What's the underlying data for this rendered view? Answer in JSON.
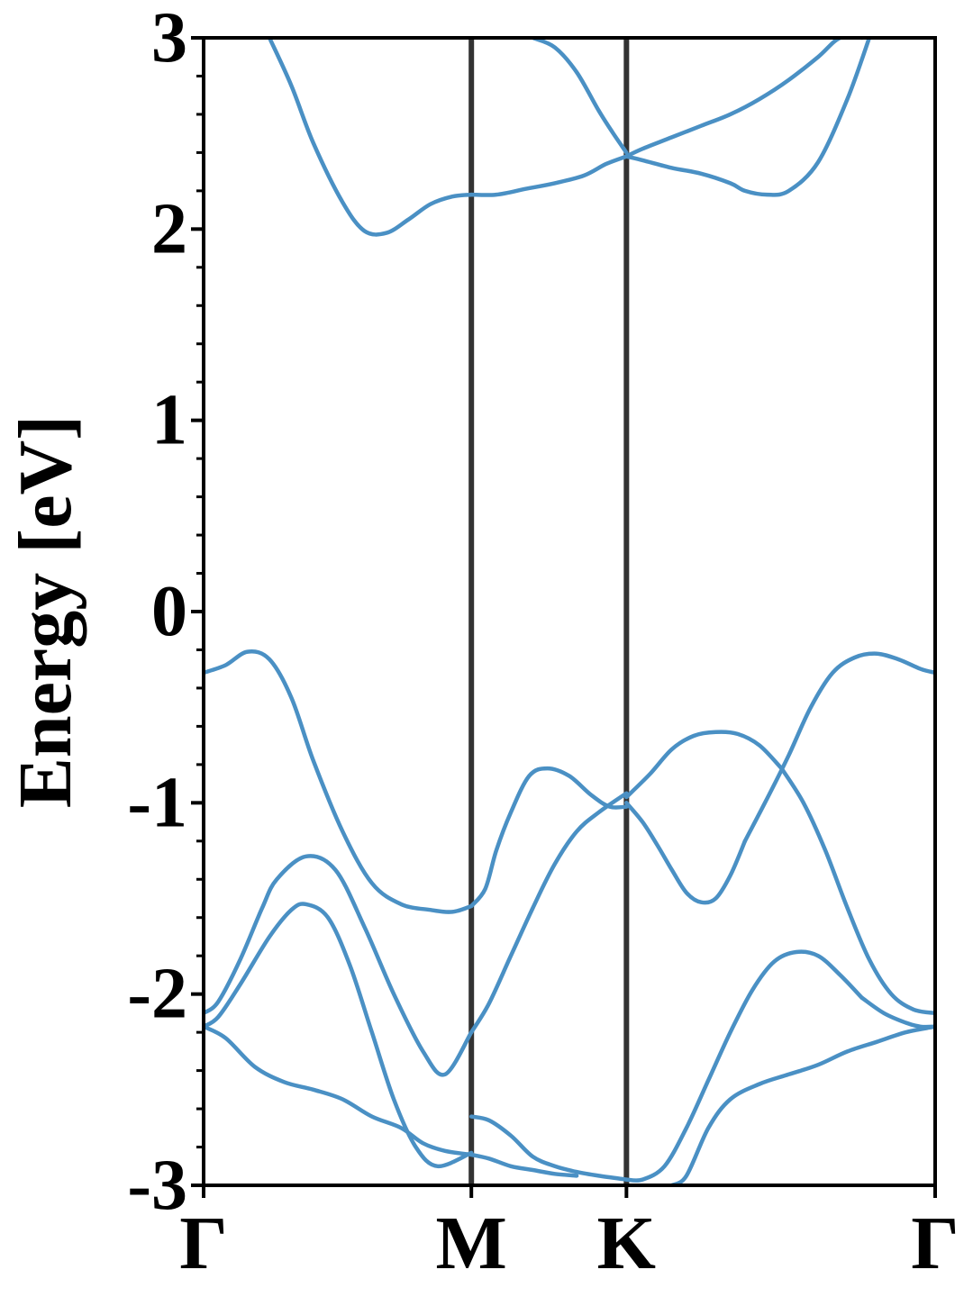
{
  "chart_data": {
    "type": "line",
    "title": "",
    "xlabel": "",
    "ylabel": "Energy [eV]",
    "ylim": [
      -3,
      3
    ],
    "xlim": [
      0,
      1
    ],
    "yticks": [
      "-3",
      "-2",
      "-1",
      "0",
      "1",
      "2",
      "3"
    ],
    "ytick_values": [
      -3,
      -2,
      -1,
      0,
      1,
      2,
      3
    ],
    "y_minor_step": 0.2,
    "xticks": [
      {
        "label": "Γ",
        "value": 0.0
      },
      {
        "label": "M",
        "value": 0.366
      },
      {
        "label": "K",
        "value": 0.578
      },
      {
        "label": "Γ",
        "value": 1.0
      }
    ],
    "grid": false,
    "legend": "none",
    "colors": {
      "band": "#4a90c4",
      "kline": "#333333",
      "axis": "#000000"
    },
    "series": [
      {
        "x": [
          0.0,
          0.02,
          0.05,
          0.08,
          0.1,
          0.14,
          0.18,
          0.22,
          0.26,
          0.3,
          0.33,
          0.366
        ],
        "y": [
          -2.1,
          -2.04,
          -1.82,
          -1.55,
          -1.4,
          -1.28,
          -1.35,
          -1.65,
          -2.0,
          -2.3,
          -2.42,
          -2.2
        ]
      },
      {
        "x": [
          0.0,
          0.02,
          0.05,
          0.09,
          0.12,
          0.14,
          0.17,
          0.2,
          0.23,
          0.26,
          0.29,
          0.32,
          0.366
        ],
        "y": [
          -2.17,
          -2.12,
          -1.95,
          -1.7,
          -1.56,
          -1.53,
          -1.6,
          -1.85,
          -2.2,
          -2.55,
          -2.8,
          -2.9,
          -2.83
        ]
      },
      {
        "x": [
          0.0,
          0.03,
          0.07,
          0.11,
          0.15,
          0.19,
          0.23,
          0.27,
          0.3,
          0.33,
          0.366
        ],
        "y": [
          -2.17,
          -2.23,
          -2.38,
          -2.46,
          -2.5,
          -2.55,
          -2.64,
          -2.7,
          -2.78,
          -2.82,
          -2.84
        ]
      },
      {
        "x": [
          0.0,
          0.03,
          0.06,
          0.09,
          0.12,
          0.15,
          0.19,
          0.23,
          0.27,
          0.31,
          0.34,
          0.366
        ],
        "y": [
          -0.32,
          -0.28,
          -0.21,
          -0.25,
          -0.45,
          -0.78,
          -1.15,
          -1.42,
          -1.53,
          -1.56,
          -1.57,
          -1.54
        ]
      },
      {
        "x": [
          0.09,
          0.12,
          0.15,
          0.19,
          0.22,
          0.25,
          0.28,
          0.31,
          0.34,
          0.366
        ],
        "y": [
          3.0,
          2.75,
          2.45,
          2.14,
          1.99,
          1.98,
          2.05,
          2.13,
          2.17,
          2.18
        ]
      },
      {
        "x": [
          0.366,
          0.385,
          0.4,
          0.42,
          0.445,
          0.47,
          0.5,
          0.53,
          0.555,
          0.578
        ],
        "y": [
          -1.54,
          -1.45,
          -1.25,
          -1.05,
          -0.86,
          -0.82,
          -0.86,
          -0.96,
          -1.02,
          -1.02
        ]
      },
      {
        "x": [
          0.366,
          0.39,
          0.42,
          0.45,
          0.48,
          0.51,
          0.54,
          0.578
        ],
        "y": [
          -2.2,
          -2.05,
          -1.8,
          -1.55,
          -1.32,
          -1.15,
          -1.05,
          -0.95
        ]
      },
      {
        "x": [
          0.366,
          0.39,
          0.42,
          0.45,
          0.48,
          0.51,
          0.54,
          0.578
        ],
        "y": [
          -2.64,
          -2.66,
          -2.74,
          -2.85,
          -2.9,
          -2.93,
          -2.95,
          -2.97
        ]
      },
      {
        "x": [
          0.366,
          0.39,
          0.42,
          0.45,
          0.48,
          0.51
        ],
        "y": [
          -2.84,
          -2.86,
          -2.9,
          -2.92,
          -2.94,
          -2.95
        ]
      },
      {
        "x": [
          0.366,
          0.4,
          0.44,
          0.48,
          0.52,
          0.55,
          0.578
        ],
        "y": [
          2.18,
          2.18,
          2.21,
          2.24,
          2.28,
          2.34,
          2.38
        ]
      },
      {
        "x": [
          0.45,
          0.48,
          0.51,
          0.54,
          0.56,
          0.578
        ],
        "y": [
          3.0,
          2.95,
          2.82,
          2.62,
          2.5,
          2.4
        ]
      },
      {
        "x": [
          0.578,
          0.6,
          0.62,
          0.64,
          0.66,
          0.68,
          0.7,
          0.72,
          0.74
        ],
        "y": [
          -1.0,
          -1.1,
          -1.22,
          -1.35,
          -1.47,
          -1.52,
          -1.5,
          -1.38,
          -1.2
        ]
      },
      {
        "x": [
          0.578,
          0.61,
          0.64,
          0.67,
          0.7,
          0.73,
          0.76,
          0.79
        ],
        "y": [
          -0.97,
          -0.85,
          -0.72,
          -0.65,
          -0.63,
          -0.64,
          -0.7,
          -0.82
        ]
      },
      {
        "x": [
          0.578,
          0.6,
          0.63,
          0.66,
          0.69,
          0.72,
          0.75,
          0.78,
          0.81,
          0.84,
          0.87,
          0.9
        ],
        "y": [
          -2.97,
          -2.97,
          -2.9,
          -2.7,
          -2.45,
          -2.2,
          -1.98,
          -1.83,
          -1.78,
          -1.8,
          -1.9,
          -2.02
        ]
      },
      {
        "x": [
          0.64,
          0.66,
          0.69,
          0.72,
          0.76,
          0.8,
          0.84,
          0.88,
          0.92,
          0.96,
          1.0
        ],
        "y": [
          -3.0,
          -2.95,
          -2.7,
          -2.55,
          -2.47,
          -2.42,
          -2.37,
          -2.3,
          -2.25,
          -2.2,
          -2.17
        ]
      },
      {
        "x": [
          0.578,
          0.6,
          0.64,
          0.68,
          0.72,
          0.76,
          0.8,
          0.84,
          0.87,
          0.9
        ],
        "y": [
          2.38,
          2.42,
          2.48,
          2.54,
          2.6,
          2.68,
          2.78,
          2.9,
          3.0,
          3.0
        ]
      },
      {
        "x": [
          0.578,
          0.6,
          0.64,
          0.68,
          0.72,
          0.74,
          0.77,
          0.8,
          0.84,
          0.88,
          0.91
        ],
        "y": [
          2.38,
          2.36,
          2.32,
          2.29,
          2.24,
          2.2,
          2.18,
          2.2,
          2.35,
          2.68,
          3.0
        ]
      },
      {
        "x": [
          0.74,
          0.77,
          0.8,
          0.83,
          0.86,
          0.89,
          0.92,
          0.95,
          0.98,
          1.0
        ],
        "y": [
          -1.2,
          -0.98,
          -0.75,
          -0.5,
          -0.32,
          -0.24,
          -0.22,
          -0.25,
          -0.3,
          -0.32
        ]
      },
      {
        "x": [
          0.79,
          0.82,
          0.85,
          0.88,
          0.91,
          0.94,
          0.97,
          1.0
        ],
        "y": [
          -0.82,
          -1.0,
          -1.25,
          -1.55,
          -1.82,
          -2.0,
          -2.08,
          -2.1
        ]
      },
      {
        "x": [
          0.9,
          0.93,
          0.96,
          0.98,
          1.0
        ],
        "y": [
          -2.02,
          -2.1,
          -2.15,
          -2.17,
          -2.17
        ]
      }
    ]
  }
}
